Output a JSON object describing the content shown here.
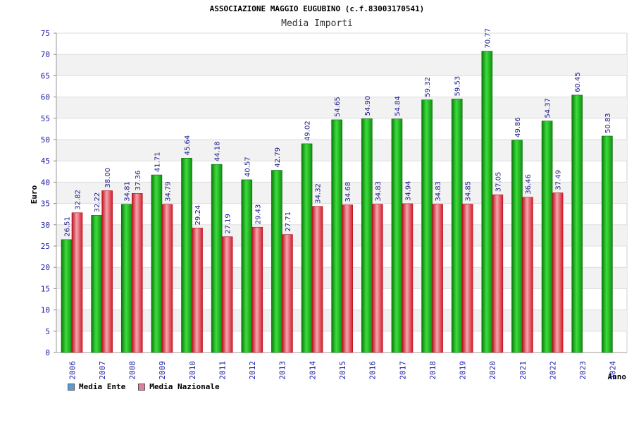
{
  "chart_data": {
    "type": "bar",
    "title": "ASSOCIAZIONE MAGGIO EUGUBINO (c.f.83003170541)",
    "subtitle": "Media Importi",
    "xlabel": "Anno",
    "ylabel": "Euro",
    "ylim": [
      0,
      75
    ],
    "ytick_step": 5,
    "grid": true,
    "legend_position": "bottom-left",
    "categories": [
      "2006",
      "2007",
      "2008",
      "2009",
      "2010",
      "2011",
      "2012",
      "2013",
      "2014",
      "2015",
      "2016",
      "2017",
      "2018",
      "2019",
      "2020",
      "2021",
      "2022",
      "2023",
      "2024"
    ],
    "series": [
      {
        "name": "Media Ente",
        "legend_color": "#5b9bd5",
        "bar_color": "#22b022",
        "values": [
          26.51,
          32.22,
          34.81,
          41.71,
          45.64,
          44.18,
          40.57,
          42.79,
          49.02,
          54.65,
          54.9,
          54.84,
          59.32,
          59.53,
          70.77,
          49.86,
          54.37,
          60.45,
          50.83
        ],
        "labels": [
          "26.51",
          "32.22",
          "34.81",
          "41.71",
          "45.64",
          "44.18",
          "40.57",
          "42.79",
          "49.02",
          "54.65",
          "54.90",
          "54.84",
          "59.32",
          "59.53",
          "70.77",
          "49.86",
          "54.37",
          "60.45",
          "50.83"
        ]
      },
      {
        "name": "Media Nazionale",
        "legend_color": "#e07ea5",
        "bar_color": "#e8303a",
        "values": [
          32.82,
          38.0,
          37.36,
          34.79,
          29.24,
          27.19,
          29.43,
          27.71,
          34.32,
          34.68,
          34.83,
          34.94,
          34.83,
          34.85,
          37.05,
          36.46,
          37.49,
          null,
          null
        ],
        "labels": [
          "32.82",
          "38.00",
          "37.36",
          "34.79",
          "29.24",
          "27.19",
          "29.43",
          "27.71",
          "34.32",
          "34.68",
          "34.83",
          "34.94",
          "34.83",
          "34.85",
          "37.05",
          "36.46",
          "37.49",
          null,
          null
        ]
      }
    ]
  }
}
